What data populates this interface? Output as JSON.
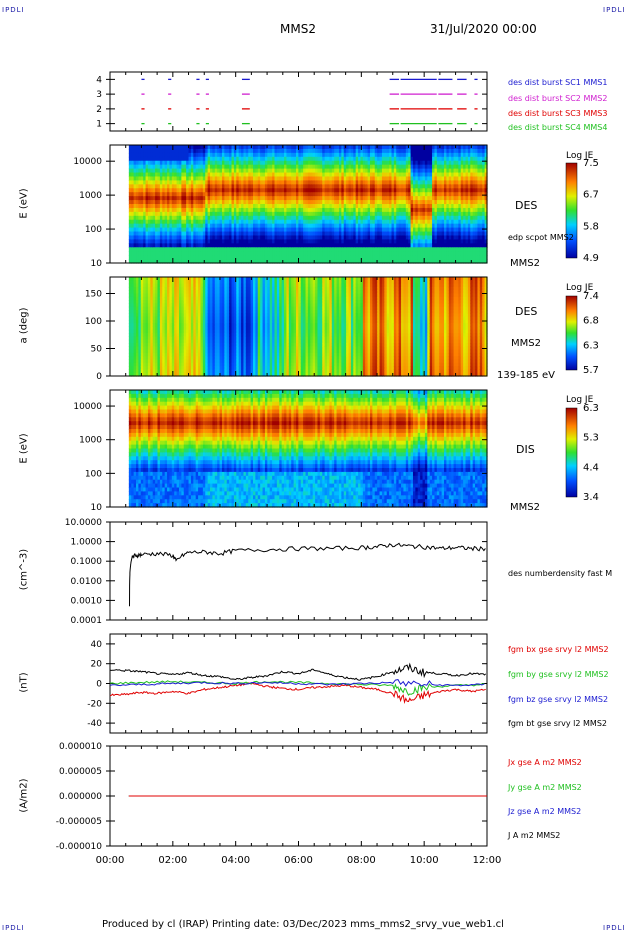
{
  "corner_text": "IPDLI",
  "title_left": "MMS2",
  "title_right": "31/Jul/2020 00:00",
  "footer": "Produced by cl (IRAP)   Printing date: 03/Dec/2023   mms_mms2_srvy_vue_web1.cl",
  "chart_data": [
    {
      "type": "scatter",
      "panel": "burst-availability",
      "y_ticks": [
        "1",
        "2",
        "3",
        "4"
      ],
      "ylim": [
        0.5,
        4.5
      ],
      "legend": [
        {
          "name": "des dist burst SC1 MMS1",
          "color": "#1a1ad0"
        },
        {
          "name": "des dist burst SC2 MMS2",
          "color": "#d020d0"
        },
        {
          "name": "des dist burst SC3 MMS3",
          "color": "#e00000"
        },
        {
          "name": "des dist burst SC4 MMS4",
          "color": "#20c020"
        }
      ],
      "intervals_hours": [
        [
          1.0,
          1.1
        ],
        [
          1.85,
          1.95
        ],
        [
          2.75,
          2.85
        ],
        [
          3.05,
          3.15
        ],
        [
          4.2,
          4.45
        ],
        [
          8.9,
          9.2
        ],
        [
          9.25,
          10.4
        ],
        [
          10.45,
          10.9
        ],
        [
          11.05,
          11.35
        ],
        [
          11.6,
          11.7
        ]
      ]
    },
    {
      "type": "heatmap",
      "panel": "des-energy-spectrogram",
      "ylabel": "E (eV)",
      "y_scale": "log",
      "y_ticks": [
        "10",
        "100",
        "1000",
        "10000"
      ],
      "ylim": [
        10,
        30000
      ],
      "label": "DES",
      "sublabel": "MMS2",
      "overlay": "edp scpot MMS2",
      "colorbar": {
        "title": "Log JE",
        "ticks": [
          "7.5",
          "6.7",
          "5.8",
          "4.9"
        ],
        "range": [
          4.9,
          7.5
        ]
      }
    },
    {
      "type": "heatmap",
      "panel": "des-pitch-angle",
      "ylabel": "a (deg)",
      "y_ticks": [
        "0",
        "50",
        "100",
        "150"
      ],
      "ylim": [
        0,
        180
      ],
      "label": "DES",
      "sublabel": "MMS2",
      "energy_range": "139-185 eV",
      "colorbar": {
        "title": "Log JE",
        "ticks": [
          "7.4",
          "6.8",
          "6.3",
          "5.7"
        ],
        "range": [
          5.7,
          7.4
        ]
      }
    },
    {
      "type": "heatmap",
      "panel": "dis-energy-spectrogram",
      "ylabel": "E (eV)",
      "y_scale": "log",
      "y_ticks": [
        "10",
        "100",
        "1000",
        "10000"
      ],
      "ylim": [
        10,
        30000
      ],
      "label": "DIS",
      "sublabel": "MMS2",
      "colorbar": {
        "title": "Log JE",
        "ticks": [
          "6.3",
          "5.3",
          "4.4",
          "3.4"
        ],
        "range": [
          3.4,
          6.3
        ]
      }
    },
    {
      "type": "line",
      "panel": "density",
      "ylabel": "(cm^-3)",
      "y_scale": "log",
      "y_ticks": [
        "10.0000",
        "1.0000",
        "0.1000",
        "0.0100",
        "0.0010",
        "0.0001"
      ],
      "ylim": [
        0.0001,
        10
      ],
      "series": [
        {
          "name": "des numberdensity fast M",
          "color": "#000000",
          "x": [
            0.62,
            0.65,
            0.7,
            0.8,
            1.0,
            1.5,
            2.0,
            2.1,
            2.5,
            3.0,
            3.5,
            4.0,
            5.0,
            6.0,
            7.0,
            8.0,
            8.5,
            9.0,
            9.5,
            10.0,
            10.5,
            11.0,
            11.5,
            12.0
          ],
          "y": [
            0.0005,
            0.05,
            0.15,
            0.2,
            0.22,
            0.25,
            0.2,
            0.1,
            0.28,
            0.3,
            0.25,
            0.35,
            0.4,
            0.45,
            0.45,
            0.5,
            0.55,
            0.7,
            0.6,
            0.55,
            0.45,
            0.5,
            0.45,
            0.45
          ]
        }
      ]
    },
    {
      "type": "line",
      "panel": "magnetic-field",
      "ylabel": "(nT)",
      "y_ticks": [
        "40",
        "20",
        "0",
        "-20",
        "-40"
      ],
      "ylim": [
        -50,
        50
      ],
      "series": [
        {
          "name": "fgm bx gse srvy l2 MMS2",
          "color": "#e00000",
          "x": [
            0,
            0.5,
            1,
            1.5,
            2,
            2.5,
            3,
            3.5,
            4,
            4.5,
            5,
            5.5,
            6,
            6.5,
            7,
            7.5,
            8,
            8.5,
            9,
            9.5,
            10,
            10.5,
            11,
            11.5,
            12
          ],
          "y": [
            -12,
            -11,
            -9,
            -10,
            -8,
            -10,
            -6,
            -4,
            -2,
            0,
            -3,
            -5,
            -6,
            -4,
            -3,
            -2,
            -4,
            -6,
            -10,
            -18,
            -12,
            -8,
            -6,
            -8,
            -6
          ]
        },
        {
          "name": "fgm by gse srvy l2 MMS2",
          "color": "#20c020",
          "x": [
            0,
            1,
            2,
            3,
            4,
            5,
            6,
            7,
            8,
            9,
            9.5,
            10,
            11,
            12
          ],
          "y": [
            0,
            1,
            2,
            1,
            0,
            2,
            1,
            0,
            -1,
            -2,
            -8,
            -4,
            -2,
            -1
          ]
        },
        {
          "name": "fgm bz gse srvy l2 MMS2",
          "color": "#1a1ad0",
          "x": [
            0,
            1,
            2,
            3,
            4,
            5,
            6,
            7,
            8,
            9,
            10,
            11,
            12
          ],
          "y": [
            -2,
            -1,
            0,
            1,
            0,
            1,
            0,
            -1,
            0,
            1,
            -1,
            -2,
            -1
          ]
        },
        {
          "name": "fgm bt gse srvy l2 MMS2",
          "color": "#000000",
          "x": [
            0,
            0.5,
            1,
            1.5,
            2,
            2.5,
            3,
            3.5,
            4,
            4.5,
            5,
            5.5,
            6,
            6.5,
            7,
            7.5,
            8,
            8.5,
            9,
            9.5,
            10,
            10.5,
            11,
            11.5,
            12
          ],
          "y": [
            14,
            13,
            12,
            10,
            9,
            11,
            8,
            7,
            4,
            6,
            8,
            12,
            10,
            14,
            9,
            6,
            4,
            7,
            12,
            16,
            11,
            10,
            8,
            10,
            9
          ]
        }
      ]
    },
    {
      "type": "line",
      "panel": "current-density",
      "ylabel": "(A/m2)",
      "y_ticks": [
        "0.000010",
        "0.000005",
        "0.000000",
        "-0.000005",
        "-0.000010"
      ],
      "ylim": [
        -1e-05,
        1e-05
      ],
      "series": [
        {
          "name": "Jx gse A m2 MMS2",
          "color": "#e00000",
          "x": [
            0.6,
            12
          ],
          "y": [
            0,
            0
          ]
        },
        {
          "name": "Jy gse A m2 MMS2",
          "color": "#20c020",
          "x": [
            0.6,
            12
          ],
          "y": [
            0,
            0
          ]
        },
        {
          "name": "Jz gse A m2 MMS2",
          "color": "#1a1ad0",
          "x": [
            0.6,
            12
          ],
          "y": [
            0,
            0
          ]
        },
        {
          "name": "J A m2 MMS2",
          "color": "#000000",
          "x": [
            0.6,
            12
          ],
          "y": [
            0,
            0
          ]
        }
      ]
    }
  ],
  "x_axis": {
    "ticks": [
      "00:00",
      "02:00",
      "04:00",
      "06:00",
      "08:00",
      "10:00",
      "12:00"
    ],
    "range_hours": [
      0,
      12
    ]
  }
}
